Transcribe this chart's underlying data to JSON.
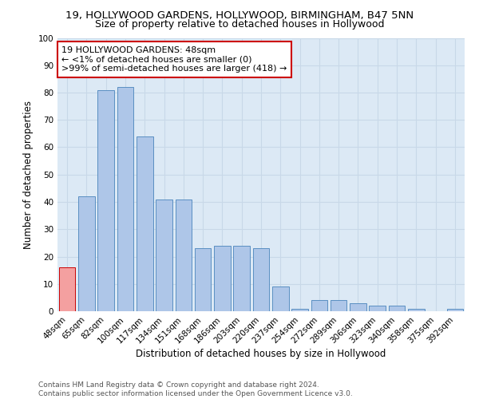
{
  "title1": "19, HOLLYWOOD GARDENS, HOLLYWOOD, BIRMINGHAM, B47 5NN",
  "title2": "Size of property relative to detached houses in Hollywood",
  "xlabel": "Distribution of detached houses by size in Hollywood",
  "ylabel": "Number of detached properties",
  "categories": [
    "48sqm",
    "65sqm",
    "82sqm",
    "100sqm",
    "117sqm",
    "134sqm",
    "151sqm",
    "168sqm",
    "186sqm",
    "203sqm",
    "220sqm",
    "237sqm",
    "254sqm",
    "272sqm",
    "289sqm",
    "306sqm",
    "323sqm",
    "340sqm",
    "358sqm",
    "375sqm",
    "392sqm"
  ],
  "values": [
    16,
    42,
    81,
    82,
    64,
    41,
    41,
    23,
    24,
    24,
    23,
    9,
    1,
    4,
    4,
    3,
    2,
    2,
    1,
    0,
    1
  ],
  "bar_color": "#aec6e8",
  "bar_edge_color": "#5a8fc2",
  "annotation_text": "19 HOLLYWOOD GARDENS: 48sqm\n← <1% of detached houses are smaller (0)\n>99% of semi-detached houses are larger (418) →",
  "annotation_box_color": "#ffffff",
  "annotation_box_edge_color": "#cc0000",
  "subject_bar_color": "#f4a0a0",
  "subject_bar_edge_color": "#cc0000",
  "ylim": [
    0,
    100
  ],
  "yticks": [
    0,
    10,
    20,
    30,
    40,
    50,
    60,
    70,
    80,
    90,
    100
  ],
  "grid_color": "#c8d8e8",
  "bg_color": "#dce9f5",
  "footer_text": "Contains HM Land Registry data © Crown copyright and database right 2024.\nContains public sector information licensed under the Open Government Licence v3.0.",
  "title1_fontsize": 9.5,
  "title2_fontsize": 9,
  "xlabel_fontsize": 8.5,
  "ylabel_fontsize": 8.5,
  "tick_fontsize": 7.5,
  "annotation_fontsize": 8,
  "footer_fontsize": 6.5
}
